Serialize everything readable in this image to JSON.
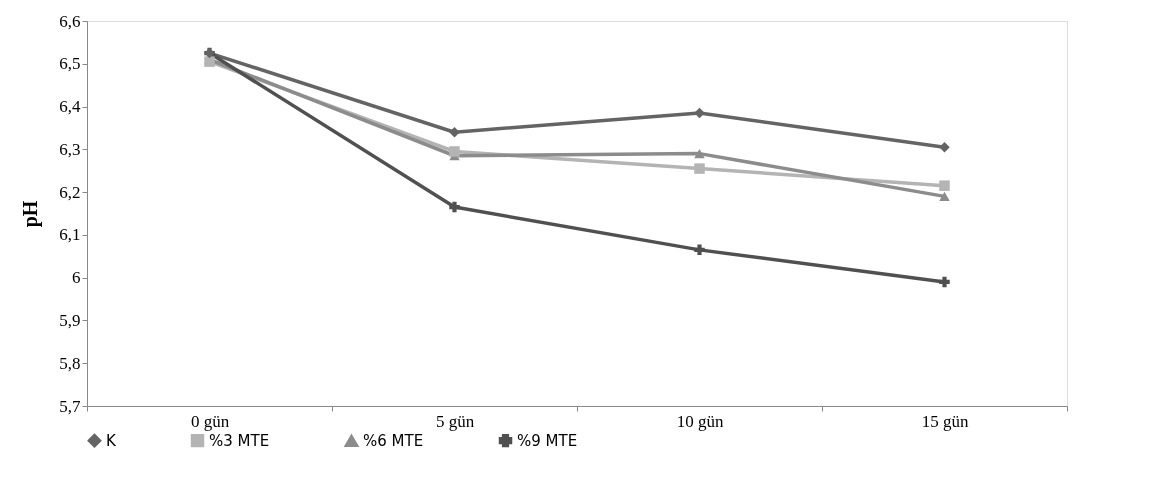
{
  "chart_data": {
    "type": "line",
    "ylabel": "pH",
    "categories": [
      "0 gün",
      "5 gün",
      "10 gün",
      "15 gün"
    ],
    "series": [
      {
        "name": "K",
        "color": "#646464",
        "marker": "diamond",
        "values": [
          6.525,
          6.34,
          6.385,
          6.305
        ]
      },
      {
        "name": "%3 MTE",
        "color": "#b4b4b4",
        "marker": "square",
        "values": [
          6.505,
          6.295,
          6.255,
          6.215
        ]
      },
      {
        "name": "%6 MTE",
        "color": "#8c8c8c",
        "marker": "triangle",
        "values": [
          6.51,
          6.285,
          6.29,
          6.19
        ]
      },
      {
        "name": "%9 MTE",
        "color": "#505050",
        "marker": "cross",
        "values": [
          6.525,
          6.165,
          6.065,
          5.99
        ]
      }
    ],
    "ylim": [
      5.7,
      6.6
    ],
    "yticks": [
      {
        "value": 5.7,
        "label": "5,7"
      },
      {
        "value": 5.8,
        "label": "5,8"
      },
      {
        "value": 5.9,
        "label": "5,9"
      },
      {
        "value": 6,
        "label": "6"
      },
      {
        "value": 6.1,
        "label": "6,1"
      },
      {
        "value": 6.2,
        "label": "6,2"
      },
      {
        "value": 6.3,
        "label": "6,3"
      },
      {
        "value": 6.4,
        "label": "6,4"
      },
      {
        "value": 6.5,
        "label": "6,5"
      },
      {
        "value": 6.6,
        "label": "6,6"
      }
    ],
    "grid": false,
    "legend": "bottom",
    "line_style": "solid"
  }
}
